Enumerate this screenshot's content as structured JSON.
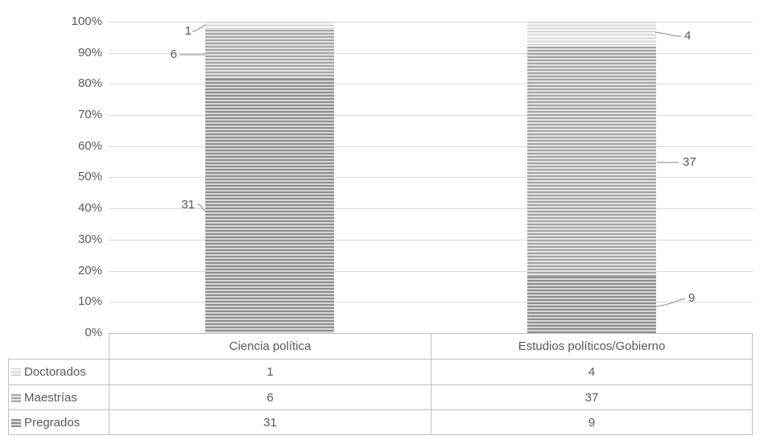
{
  "chart_data": {
    "type": "bar",
    "subtype": "stacked-100-percent-column",
    "title": "",
    "xlabel": "",
    "ylabel": "",
    "value_axis_format": "percent",
    "ylim": [
      0,
      1
    ],
    "grid": true,
    "categories": [
      "Ciencia política",
      "Estudios políticos/Gobierno"
    ],
    "series": [
      {
        "name": "Doctorados",
        "values": [
          1,
          4
        ]
      },
      {
        "name": "Maestrías",
        "values": [
          6,
          37
        ]
      },
      {
        "name": "Pregrados",
        "values": [
          31,
          9
        ]
      }
    ],
    "yticks": [
      "100%",
      "90%",
      "80%",
      "70%",
      "60%",
      "50%",
      "40%",
      "30%",
      "20%",
      "10%",
      "0%"
    ],
    "data_labels": [
      "1",
      "6",
      "31",
      "4",
      "37",
      "9"
    ],
    "legend_position": "data-table-left",
    "colors": {
      "text": "#595959",
      "gridline": "#d9d9d9",
      "table_border": "#bfbfbf",
      "leader_line": "#9d9d9d",
      "pattern_doctorados_line": "#c9c9c9",
      "pattern_maestrias_line": "#a4a4a4",
      "pattern_pregrados_line": "#8e8e8e",
      "pattern_background": "#f3f3f3"
    }
  }
}
